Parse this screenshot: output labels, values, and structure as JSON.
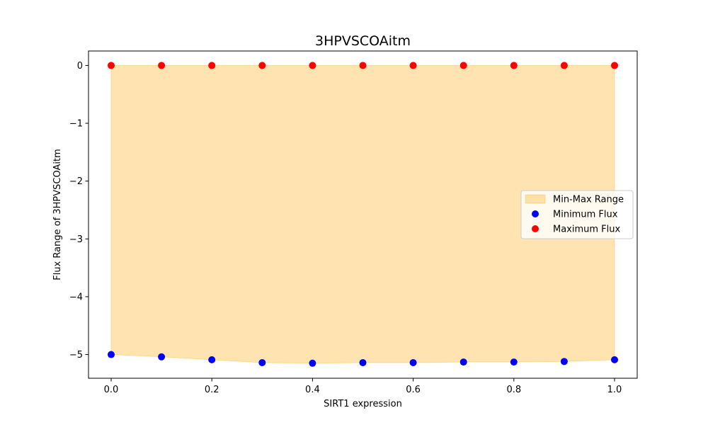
{
  "chart_data": {
    "type": "scatter",
    "title": "3HPVSCOAitm",
    "xlabel": "SIRT1 expression",
    "ylabel": "Flux Range of 3HPVSCOAitm",
    "x": [
      0.0,
      0.1,
      0.2,
      0.3,
      0.4,
      0.5,
      0.6,
      0.7,
      0.8,
      0.9,
      1.0
    ],
    "xlim": [
      -0.045,
      1.045
    ],
    "ylim": [
      -5.41,
      0.25
    ],
    "xticks": [
      0.0,
      0.2,
      0.4,
      0.6,
      0.8,
      1.0
    ],
    "xtick_labels": [
      "0.0",
      "0.2",
      "0.4",
      "0.6",
      "0.8",
      "1.0"
    ],
    "yticks": [
      0,
      -1,
      -2,
      -3,
      -4,
      -5
    ],
    "ytick_labels": [
      "0",
      "−1",
      "−2",
      "−3",
      "−4",
      "−5"
    ],
    "series": [
      {
        "name": "Min-Max Range",
        "kind": "fill_between",
        "color": "#FFA500",
        "opacity": 0.3,
        "lower": [
          -5.0,
          -5.04,
          -5.09,
          -5.14,
          -5.15,
          -5.14,
          -5.14,
          -5.13,
          -5.13,
          -5.12,
          -5.09
        ],
        "upper": [
          0,
          0,
          0,
          0,
          0,
          0,
          0,
          0,
          0,
          0,
          0
        ]
      },
      {
        "name": "Minimum Flux",
        "kind": "scatter",
        "color": "#0000FF",
        "values": [
          -5.0,
          -5.04,
          -5.09,
          -5.14,
          -5.15,
          -5.14,
          -5.14,
          -5.13,
          -5.13,
          -5.12,
          -5.09
        ]
      },
      {
        "name": "Maximum Flux",
        "kind": "scatter",
        "color": "#FF0000",
        "values": [
          0,
          0,
          0,
          0,
          0,
          0,
          0,
          0,
          0,
          0,
          0
        ]
      }
    ],
    "grid": false,
    "legend_position": "center-right"
  }
}
